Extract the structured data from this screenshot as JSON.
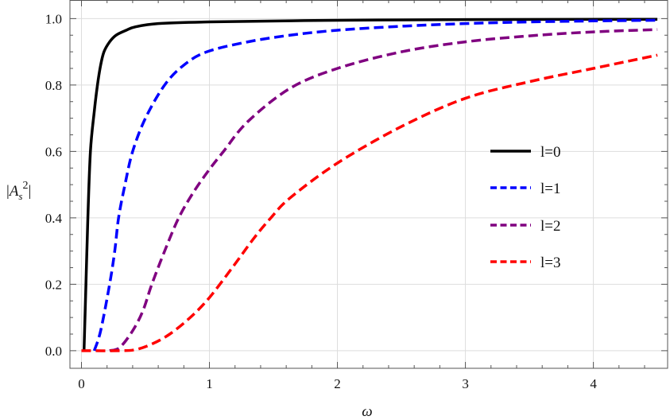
{
  "chart_data": {
    "type": "line",
    "title": "",
    "xlabel": "ω",
    "ylabel": "|A_s^2|",
    "ylabel_parts": {
      "bar_left": "|",
      "base": "A",
      "sub": "s",
      "sup": "2",
      "bar_right": "|"
    },
    "xlim": [
      -0.09,
      4.58
    ],
    "ylim": [
      -0.053,
      1.056
    ],
    "x_ticks": [
      0,
      1,
      2,
      3,
      4
    ],
    "x_tick_labels": [
      "0",
      "1",
      "2",
      "3",
      "4"
    ],
    "y_ticks": [
      0,
      0.2,
      0.4,
      0.6,
      0.8,
      1.0
    ],
    "y_tick_labels": [
      "0.0",
      "0.2",
      "0.4",
      "0.6",
      "0.8",
      "1.0"
    ],
    "grid": true,
    "legend_placement": "right-center",
    "series": [
      {
        "name": "l=0",
        "color": "#000000",
        "dash": "solid",
        "points": [
          [
            0.02,
            0
          ],
          [
            0.035,
            0.2
          ],
          [
            0.05,
            0.4
          ],
          [
            0.07,
            0.6
          ],
          [
            0.1,
            0.72
          ],
          [
            0.125,
            0.8
          ],
          [
            0.15,
            0.86
          ],
          [
            0.176,
            0.9
          ],
          [
            0.22,
            0.93
          ],
          [
            0.27,
            0.95
          ],
          [
            0.35,
            0.965
          ],
          [
            0.42,
            0.975
          ],
          [
            0.6,
            0.985
          ],
          [
            1,
            0.99
          ],
          [
            2,
            0.995
          ],
          [
            3,
            0.997
          ],
          [
            4.5,
            0.998
          ]
        ]
      },
      {
        "name": "l=1",
        "color": "#0000ff",
        "dash": "dashed",
        "points": [
          [
            0.1,
            0
          ],
          [
            0.15,
            0.06
          ],
          [
            0.22,
            0.2
          ],
          [
            0.26,
            0.3
          ],
          [
            0.29,
            0.4
          ],
          [
            0.34,
            0.5
          ],
          [
            0.4,
            0.6
          ],
          [
            0.5,
            0.7
          ],
          [
            0.65,
            0.8
          ],
          [
            0.8,
            0.86
          ],
          [
            0.98,
            0.9
          ],
          [
            1.3,
            0.93
          ],
          [
            1.63,
            0.95
          ],
          [
            2,
            0.965
          ],
          [
            2.5,
            0.977
          ],
          [
            3,
            0.985
          ],
          [
            3.5,
            0.99
          ],
          [
            4,
            0.993
          ],
          [
            4.5,
            0.995
          ]
        ]
      },
      {
        "name": "l=2",
        "color": "#800080",
        "dash": "dashed",
        "points": [
          [
            0.22,
            0
          ],
          [
            0.3,
            0.01
          ],
          [
            0.4,
            0.06
          ],
          [
            0.48,
            0.12
          ],
          [
            0.55,
            0.2
          ],
          [
            0.65,
            0.3
          ],
          [
            0.76,
            0.4
          ],
          [
            0.88,
            0.48
          ],
          [
            1,
            0.546
          ],
          [
            1.11,
            0.6
          ],
          [
            1.3,
            0.69
          ],
          [
            1.63,
            0.79
          ],
          [
            2,
            0.85
          ],
          [
            2.5,
            0.9
          ],
          [
            3,
            0.93
          ],
          [
            3.5,
            0.948
          ],
          [
            4,
            0.96
          ],
          [
            4.5,
            0.967
          ]
        ]
      },
      {
        "name": "l=3",
        "color": "#ff0000",
        "dash": "dashed",
        "points": [
          [
            0,
            0
          ],
          [
            0.3,
            0
          ],
          [
            0.42,
            0.003
          ],
          [
            0.55,
            0.02
          ],
          [
            0.69,
            0.05
          ],
          [
            0.85,
            0.1
          ],
          [
            1,
            0.16
          ],
          [
            1.19,
            0.256
          ],
          [
            1.35,
            0.34
          ],
          [
            1.48,
            0.4
          ],
          [
            1.63,
            0.46
          ],
          [
            2,
            0.565
          ],
          [
            2.5,
            0.675
          ],
          [
            3,
            0.76
          ],
          [
            3.5,
            0.81
          ],
          [
            4,
            0.85
          ],
          [
            4.5,
            0.89
          ]
        ]
      }
    ]
  }
}
